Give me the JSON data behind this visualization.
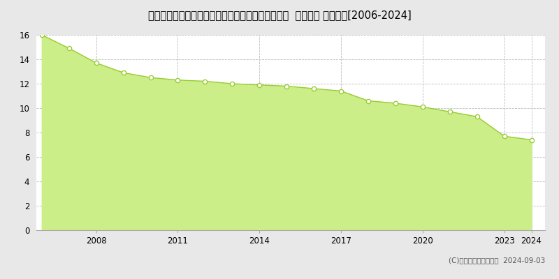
{
  "title": "愛知県知多郡南知多町大字師崎字神戸浦１７７番１  地価公示 地価推移[2006-2024]",
  "years": [
    2006,
    2007,
    2008,
    2009,
    2010,
    2011,
    2012,
    2013,
    2014,
    2015,
    2016,
    2017,
    2018,
    2019,
    2020,
    2021,
    2022,
    2023,
    2024
  ],
  "values": [
    16.0,
    14.9,
    13.7,
    12.9,
    12.5,
    12.3,
    12.2,
    12.0,
    11.9,
    11.8,
    11.6,
    11.4,
    10.6,
    10.4,
    10.1,
    9.7,
    9.3,
    7.7,
    7.4
  ],
  "line_color": "#99cc33",
  "fill_color": "#ccee88",
  "marker_color": "white",
  "marker_edge_color": "#99cc33",
  "background_color": "#ffffff",
  "plot_bg_color": "#ffffff",
  "outer_bg_color": "#e8e8e8",
  "grid_color": "#bbbbbb",
  "ylim": [
    0,
    16
  ],
  "yticks": [
    0,
    2,
    4,
    6,
    8,
    10,
    12,
    14,
    16
  ],
  "xtick_positions": [
    2008,
    2011,
    2014,
    2017,
    2020,
    2023,
    2024
  ],
  "copyright_text": "(C)土地価格ドットコム  2024-09-03",
  "title_fontsize": 10.5,
  "axis_fontsize": 8.5,
  "legend_fontsize": 8.5,
  "copyright_fontsize": 7.5
}
